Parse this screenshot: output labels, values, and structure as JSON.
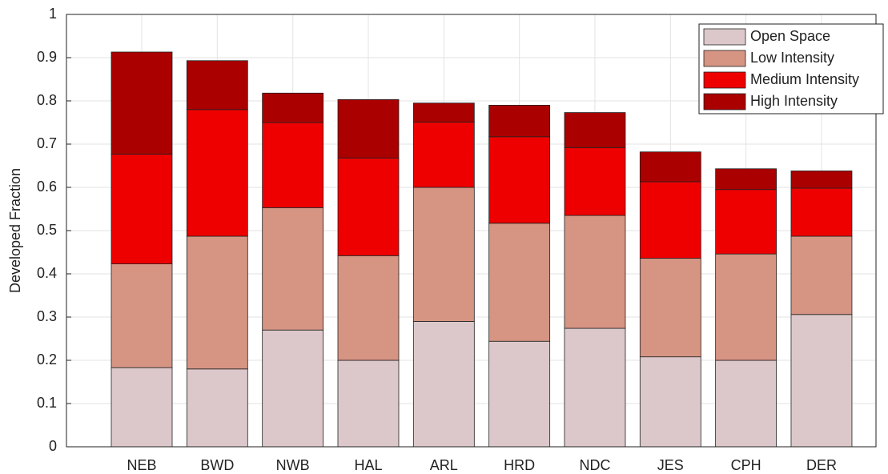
{
  "chart_data": {
    "type": "stacked_bar",
    "y_label": "Developed Fraction",
    "categories": [
      "NEB",
      "BWD",
      "NWB",
      "HAL",
      "ARL",
      "HRD",
      "NDC",
      "JES",
      "CPH",
      "DER"
    ],
    "series": [
      {
        "name": "Open Space",
        "color": "#dcc8ca",
        "values": [
          0.183,
          0.18,
          0.27,
          0.2,
          0.29,
          0.244,
          0.274,
          0.208,
          0.2,
          0.306
        ]
      },
      {
        "name": "Low Intensity",
        "color": "#d69483",
        "values": [
          0.24,
          0.307,
          0.283,
          0.242,
          0.31,
          0.273,
          0.261,
          0.228,
          0.246,
          0.181
        ]
      },
      {
        "name": "Medium Intensity",
        "color": "#ee0000",
        "values": [
          0.254,
          0.293,
          0.197,
          0.226,
          0.151,
          0.2,
          0.157,
          0.177,
          0.149,
          0.111
        ]
      },
      {
        "name": "High Intensity",
        "color": "#aa0000",
        "values": [
          0.236,
          0.113,
          0.068,
          0.135,
          0.044,
          0.073,
          0.081,
          0.069,
          0.048,
          0.04
        ]
      }
    ],
    "ylim": [
      0,
      1
    ],
    "yticks": [
      0,
      0.1,
      0.2,
      0.3,
      0.4,
      0.5,
      0.6,
      0.7,
      0.8,
      0.9,
      1
    ],
    "grid": true,
    "legend": "top-right"
  }
}
